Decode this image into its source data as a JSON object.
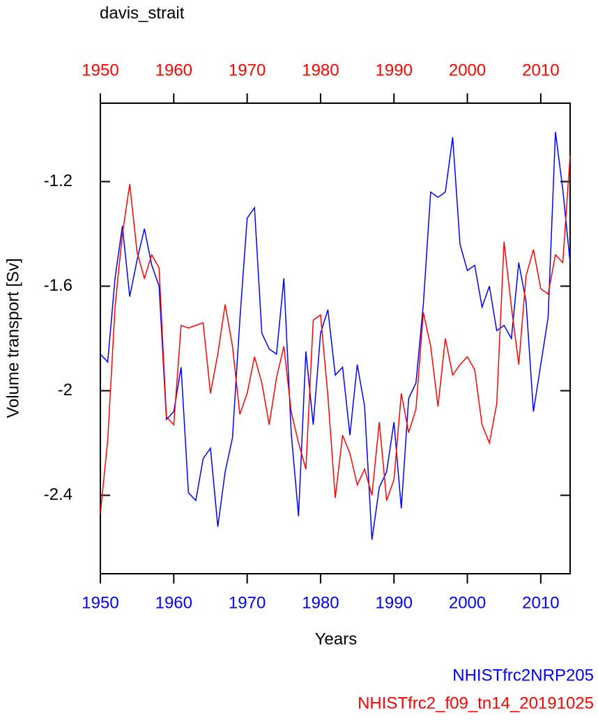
{
  "chart_data": {
    "type": "line",
    "title": "davis_strait",
    "x_label": "Years",
    "y_label": "Volume transport [Sv]",
    "x": [
      1950,
      1951,
      1952,
      1953,
      1954,
      1955,
      1956,
      1957,
      1958,
      1959,
      1960,
      1961,
      1962,
      1963,
      1964,
      1965,
      1966,
      1967,
      1968,
      1969,
      1970,
      1971,
      1972,
      1973,
      1974,
      1975,
      1976,
      1977,
      1978,
      1979,
      1980,
      1981,
      1982,
      1983,
      1984,
      1985,
      1986,
      1987,
      1988,
      1989,
      1990,
      1991,
      1992,
      1993,
      1994,
      1995,
      1996,
      1997,
      1998,
      1999,
      2000,
      2001,
      2002,
      2003,
      2004,
      2005,
      2006,
      2007,
      2008,
      2009,
      2010,
      2011,
      2012,
      2013,
      2014
    ],
    "series": [
      {
        "name": "NHISTfrc2NRP205",
        "color": "#0000ff",
        "values": [
          -1.86,
          -1.89,
          -1.57,
          -1.37,
          -1.64,
          -1.5,
          -1.38,
          -1.52,
          -1.6,
          -2.11,
          -2.08,
          -1.91,
          -2.39,
          -2.42,
          -2.26,
          -2.22,
          -2.52,
          -2.31,
          -2.18,
          -1.73,
          -1.34,
          -1.3,
          -1.78,
          -1.84,
          -1.86,
          -1.57,
          -2.16,
          -2.48,
          -1.85,
          -2.13,
          -1.78,
          -1.69,
          -1.94,
          -1.91,
          -2.17,
          -1.9,
          -2.06,
          -2.57,
          -2.37,
          -2.31,
          -2.12,
          -2.45,
          -2.03,
          -1.97,
          -1.67,
          -1.24,
          -1.26,
          -1.24,
          -1.03,
          -1.44,
          -1.54,
          -1.52,
          -1.68,
          -1.6,
          -1.77,
          -1.75,
          -1.8,
          -1.51,
          -1.66,
          -2.08,
          -1.9,
          -1.72,
          -1.01,
          -1.23,
          -1.51
        ]
      },
      {
        "name": "NHISTfrc2_f09_tn14_20191025",
        "color": "#ff0000",
        "values": [
          -2.47,
          -2.19,
          -1.68,
          -1.4,
          -1.21,
          -1.47,
          -1.57,
          -1.48,
          -1.53,
          -2.1,
          -2.13,
          -1.75,
          -1.76,
          -1.75,
          -1.74,
          -2.01,
          -1.86,
          -1.67,
          -1.83,
          -2.09,
          -2.01,
          -1.87,
          -1.97,
          -2.13,
          -1.95,
          -1.83,
          -2.08,
          -2.2,
          -2.3,
          -1.73,
          -1.71,
          -2.02,
          -2.41,
          -2.17,
          -2.24,
          -2.36,
          -2.3,
          -2.4,
          -2.12,
          -2.42,
          -2.34,
          -2.01,
          -2.16,
          -2.07,
          -1.7,
          -1.83,
          -2.06,
          -1.8,
          -1.94,
          -1.9,
          -1.87,
          -1.92,
          -2.13,
          -2.2,
          -2.05,
          -1.43,
          -1.68,
          -1.9,
          -1.56,
          -1.46,
          -1.61,
          -1.63,
          -1.48,
          -1.51,
          -1.1
        ]
      }
    ],
    "xlim": [
      1950,
      2014
    ],
    "xticks": [
      1950,
      1960,
      1970,
      1980,
      1990,
      2000,
      2010
    ],
    "ylim": [
      -2.7,
      -0.9
    ],
    "yticks": [
      -2.4,
      -2.0,
      -1.6,
      -1.2
    ]
  }
}
